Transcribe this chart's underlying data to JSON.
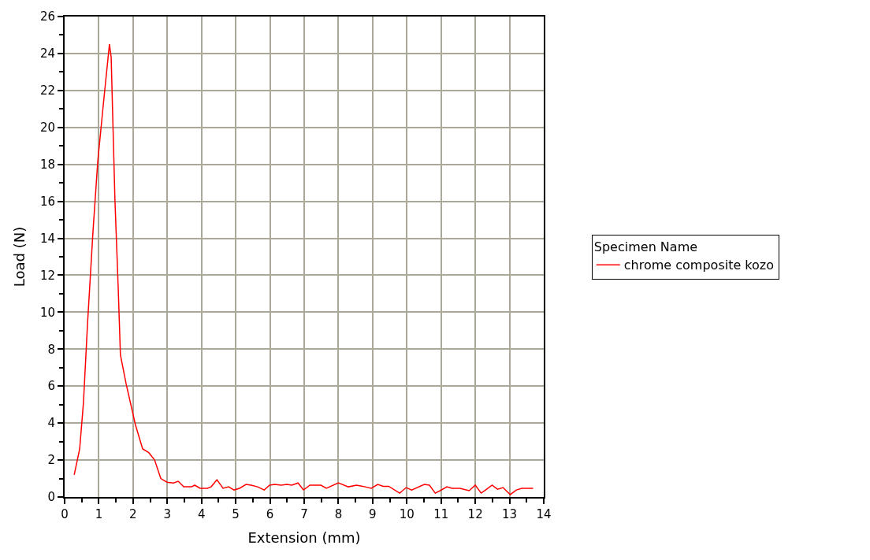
{
  "chart_data": {
    "type": "line",
    "xlabel": "Extension (mm)",
    "ylabel": "Load (N)",
    "legend_title": "Specimen Name",
    "xlim": [
      0,
      14
    ],
    "xticks": [
      0,
      1,
      2,
      3,
      4,
      5,
      6,
      7,
      8,
      9,
      10,
      11,
      12,
      13,
      14
    ],
    "ylim": [
      0,
      26
    ],
    "yticks": [
      0,
      2,
      4,
      6,
      8,
      10,
      12,
      14,
      16,
      18,
      20,
      22,
      24,
      26
    ],
    "grid": true,
    "legend": "right",
    "marker": "none",
    "line_style": "solid",
    "series": [
      {
        "name": "chrome composite kozo",
        "color": "#ff0000",
        "x": [
          0.28,
          0.44,
          0.55,
          0.67,
          0.83,
          0.97,
          1.15,
          1.31,
          1.36,
          1.47,
          1.57,
          1.63,
          1.8,
          2.07,
          2.28,
          2.46,
          2.63,
          2.81,
          2.99,
          3.18,
          3.32,
          3.48,
          3.71,
          3.8,
          3.96,
          4.17,
          4.28,
          4.45,
          4.63,
          4.79,
          4.95,
          5.11,
          5.3,
          5.45,
          5.64,
          5.83,
          5.99,
          6.14,
          6.33,
          6.49,
          6.64,
          6.82,
          6.98,
          7.17,
          7.49,
          7.65,
          8.0,
          8.29,
          8.53,
          8.71,
          8.96,
          9.15,
          9.31,
          9.47,
          9.79,
          9.98,
          10.14,
          10.51,
          10.66,
          10.83,
          10.97,
          11.17,
          11.32,
          11.55,
          11.82,
          12.0,
          12.17,
          12.3,
          12.49,
          12.65,
          12.81,
          13.02,
          13.2,
          13.36,
          13.69
        ],
        "values": [
          1.2,
          2.6,
          5.1,
          9.4,
          14.4,
          18.2,
          21.6,
          24.5,
          23.8,
          16.1,
          11.1,
          7.7,
          6.1,
          3.9,
          2.6,
          2.4,
          2.0,
          1.0,
          0.8,
          0.76,
          0.85,
          0.55,
          0.55,
          0.64,
          0.47,
          0.47,
          0.55,
          0.93,
          0.47,
          0.55,
          0.38,
          0.47,
          0.68,
          0.64,
          0.55,
          0.38,
          0.64,
          0.68,
          0.64,
          0.68,
          0.64,
          0.76,
          0.38,
          0.64,
          0.64,
          0.47,
          0.76,
          0.55,
          0.64,
          0.58,
          0.47,
          0.68,
          0.58,
          0.58,
          0.21,
          0.51,
          0.38,
          0.68,
          0.64,
          0.21,
          0.34,
          0.55,
          0.47,
          0.47,
          0.34,
          0.64,
          0.21,
          0.38,
          0.64,
          0.42,
          0.51,
          0.13,
          0.38,
          0.47,
          0.47
        ]
      }
    ]
  }
}
